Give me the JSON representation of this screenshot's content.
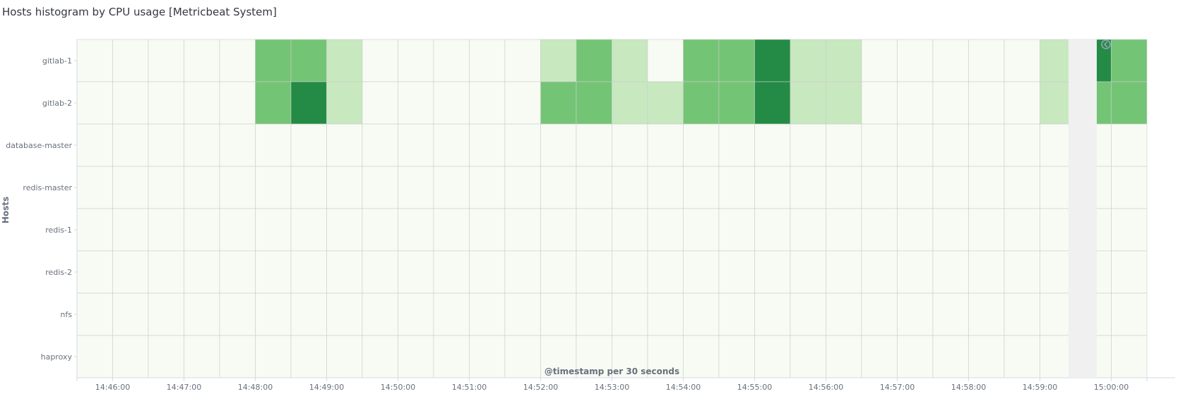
{
  "panel": {
    "title": "Hosts histogram by CPU usage [Metricbeat System]"
  },
  "chart_data": {
    "type": "heatmap",
    "xlabel": "@timestamp per 30 seconds",
    "ylabel": "Hosts",
    "x_ticks": [
      "14:46:00",
      "14:47:00",
      "14:48:00",
      "14:49:00",
      "14:50:00",
      "14:51:00",
      "14:52:00",
      "14:53:00",
      "14:54:00",
      "14:55:00",
      "14:56:00",
      "14:57:00",
      "14:58:00",
      "14:59:00",
      "15:00:00"
    ],
    "x": [
      "14:45:30",
      "14:46:00",
      "14:46:30",
      "14:47:00",
      "14:47:30",
      "14:48:00",
      "14:48:30",
      "14:49:00",
      "14:49:30",
      "14:50:00",
      "14:50:30",
      "14:51:00",
      "14:51:30",
      "14:52:00",
      "14:52:30",
      "14:53:00",
      "14:53:30",
      "14:54:00",
      "14:54:30",
      "14:55:00",
      "14:55:30",
      "14:56:00",
      "14:56:30",
      "14:57:00",
      "14:57:30",
      "14:58:00",
      "14:58:30",
      "14:59:00",
      "14:59:30",
      "15:00:00"
    ],
    "y": [
      "gitlab-1",
      "gitlab-2",
      "database-master",
      "redis-master",
      "redis-1",
      "redis-2",
      "nfs",
      "haproxy"
    ],
    "values": [
      [
        0,
        0,
        0,
        0,
        0,
        2,
        2,
        1,
        0,
        0,
        0,
        0,
        0,
        1,
        2,
        1,
        0,
        2,
        2,
        3,
        1,
        1,
        0,
        0,
        0,
        0,
        0,
        1,
        3,
        2
      ],
      [
        0,
        0,
        0,
        0,
        0,
        2,
        3,
        1,
        0,
        0,
        0,
        0,
        0,
        2,
        2,
        1,
        1,
        2,
        2,
        3,
        1,
        1,
        0,
        0,
        0,
        0,
        0,
        1,
        2,
        2
      ],
      [
        0,
        0,
        0,
        0,
        0,
        0,
        0,
        0,
        0,
        0,
        0,
        0,
        0,
        0,
        0,
        0,
        0,
        0,
        0,
        0,
        0,
        0,
        0,
        0,
        0,
        0,
        0,
        0,
        0,
        0
      ],
      [
        0,
        0,
        0,
        0,
        0,
        0,
        0,
        0,
        0,
        0,
        0,
        0,
        0,
        0,
        0,
        0,
        0,
        0,
        0,
        0,
        0,
        0,
        0,
        0,
        0,
        0,
        0,
        0,
        0,
        0
      ],
      [
        0,
        0,
        0,
        0,
        0,
        0,
        0,
        0,
        0,
        0,
        0,
        0,
        0,
        0,
        0,
        0,
        0,
        0,
        0,
        0,
        0,
        0,
        0,
        0,
        0,
        0,
        0,
        0,
        0,
        0
      ],
      [
        0,
        0,
        0,
        0,
        0,
        0,
        0,
        0,
        0,
        0,
        0,
        0,
        0,
        0,
        0,
        0,
        0,
        0,
        0,
        0,
        0,
        0,
        0,
        0,
        0,
        0,
        0,
        0,
        0,
        0
      ],
      [
        0,
        0,
        0,
        0,
        0,
        0,
        0,
        0,
        0,
        0,
        0,
        0,
        0,
        0,
        0,
        0,
        0,
        0,
        0,
        0,
        0,
        0,
        0,
        0,
        0,
        0,
        0,
        0,
        0,
        0
      ],
      [
        0,
        0,
        0,
        0,
        0,
        0,
        0,
        0,
        0,
        0,
        0,
        0,
        0,
        0,
        0,
        0,
        0,
        0,
        0,
        0,
        0,
        0,
        0,
        0,
        0,
        0,
        0,
        0,
        0,
        0
      ]
    ],
    "colors": [
      "#f7fbf3",
      "#c8e8c0",
      "#74c476",
      "#238b45"
    ],
    "grid": true
  },
  "colors": {
    "cell_border": "#c9cfc7",
    "axis_line": "#d3dae6",
    "legend_strip": "#f0f0f0",
    "collapse_icon": "#98a2b3"
  },
  "icons": {
    "legend_toggle": "chevron-left-icon"
  }
}
